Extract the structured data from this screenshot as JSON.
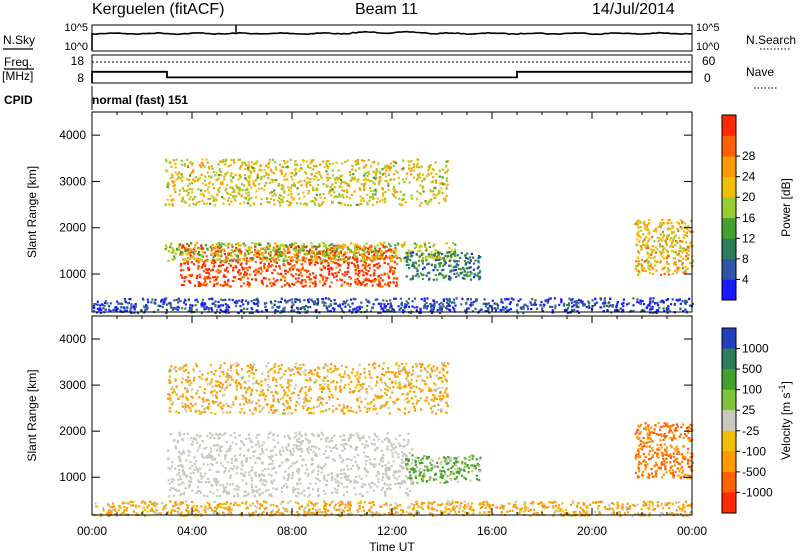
{
  "header": {
    "station": "Kerguelen (fitACF)",
    "beam": "Beam 11",
    "date": "14/Jul/2014"
  },
  "panels": {
    "nsky_label": "N.Sky",
    "nsky_ticks": [
      "10^5",
      "10^0"
    ],
    "nsearch_label": "N.Search",
    "nsearch_ticks": [
      "10^5",
      "10^0"
    ],
    "freq_label": "Freq.",
    "freq_unit": "[MHz]",
    "freq_ticks": [
      "18",
      "8"
    ],
    "nave_label": "Nave",
    "nave_ticks": [
      "60",
      "0"
    ],
    "cpid_label": "CPID",
    "cpid_value": "normal (fast) 151"
  },
  "axes": {
    "xlabel": "Time UT",
    "xticks": [
      "00:00",
      "04:00",
      "08:00",
      "12:00",
      "16:00",
      "20:00",
      "00:00"
    ],
    "ylabel": "Slant Range [km]",
    "yticks": [
      "1000",
      "2000",
      "3000",
      "4000"
    ]
  },
  "colorbars": {
    "power": {
      "label": "Power [dB]",
      "ticks": [
        "4",
        "8",
        "12",
        "16",
        "20",
        "24",
        "28"
      ],
      "colors": [
        "#1a1aff",
        "#2e55a8",
        "#2e7d5a",
        "#44a02c",
        "#99cc33",
        "#f0c000",
        "#ff9900",
        "#ff6000",
        "#ff2a00"
      ]
    },
    "velocity": {
      "label": "Velocity [m s^-1]",
      "ticks": [
        "1000",
        "500",
        "100",
        "25",
        "-25",
        "-100",
        "-500",
        "-1000"
      ],
      "colors": [
        "#2040c0",
        "#2e7d5a",
        "#44a02c",
        "#7cc43c",
        "#c8c8c0",
        "#f0c000",
        "#ff9900",
        "#ff6000",
        "#ff2a00"
      ]
    }
  },
  "chart_data": {
    "type": "heatmap",
    "x_range": [
      "00:00",
      "24:00"
    ],
    "y_range_km": [
      180,
      4500
    ],
    "nsky": {
      "ylim": [
        "10^0",
        "10^5"
      ],
      "level": "near 10^5 all day"
    },
    "frequency": {
      "ylim": [
        8,
        18
      ],
      "segments": [
        {
          "from": "00:00",
          "to": "03:00",
          "value_mhz": 12
        },
        {
          "from": "03:00",
          "to": "17:00",
          "value_mhz": 10
        },
        {
          "from": "17:00",
          "to": "24:00",
          "value_mhz": 12
        }
      ]
    },
    "nave": {
      "ylim": [
        0,
        60
      ],
      "value": 45
    },
    "power_regions": [
      {
        "t0": 3.5,
        "t1": 12.2,
        "r0": 750,
        "r1": 1650,
        "level_db": 28
      },
      {
        "t0": 2.9,
        "t1": 14.5,
        "r0": 1300,
        "r1": 1700,
        "level_db": 16
      },
      {
        "t0": 2.9,
        "t1": 14.2,
        "r0": 2500,
        "r1": 3500,
        "level_db": 18
      },
      {
        "t0": 12.5,
        "t1": 15.5,
        "r0": 900,
        "r1": 1500,
        "level_db": 8
      },
      {
        "t0": 21.7,
        "t1": 24.0,
        "r0": 1000,
        "r1": 2200,
        "level_db": 20
      },
      {
        "t0": 0.0,
        "t1": 24.0,
        "r0": 180,
        "r1": 500,
        "level_db": 4
      }
    ],
    "velocity_regions": [
      {
        "t0": 3.0,
        "t1": 12.8,
        "r0": 600,
        "r1": 2000,
        "velocity": 0
      },
      {
        "t0": 3.0,
        "t1": 14.2,
        "r0": 2400,
        "r1": 3500,
        "velocity": -100
      },
      {
        "t0": 12.5,
        "t1": 15.5,
        "r0": 900,
        "r1": 1500,
        "velocity": 100
      },
      {
        "t0": 21.7,
        "t1": 24.0,
        "r0": 1000,
        "r1": 2200,
        "velocity": -300
      },
      {
        "t0": 0.0,
        "t1": 24.0,
        "r0": 180,
        "r1": 500,
        "velocity": -100
      }
    ]
  }
}
